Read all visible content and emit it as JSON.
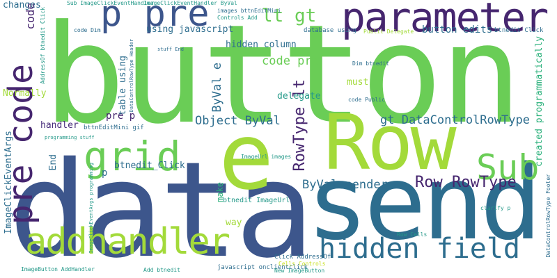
{
  "palette": {
    "green": "#6acd56",
    "lime": "#a3da3a",
    "purple": "#46266f",
    "navy": "#3d568c",
    "blue": "#2d6d8e",
    "teal": "#249989",
    "sea": "#29b07a",
    "dark": "#472d7b",
    "yellow": "#c8e020"
  },
  "words": [
    "button",
    "data",
    "send",
    "Row",
    "e",
    "parameter",
    "p pre",
    "grid",
    "pre code",
    "Sub",
    "addhandler",
    "hidden field",
    "lt gt",
    "Row RowType",
    "RowType lt",
    "Object ByVal",
    "gt DataControlRowType",
    "ByVal sender",
    "ByVal e",
    "code pre",
    "button edits",
    "using javascript",
    "changes",
    "code",
    "hidden column",
    "delegate",
    "must",
    "created programmatically",
    "pre p",
    "handler",
    "table using",
    "btnedit_Click",
    "ImageClickEventArgs",
    "Normally",
    "End",
    "way",
    "make",
    "p",
    "btnedit ImageUrl",
    "bttnEditMini gif",
    "Sub ImageClickEventHandler",
    "ImageClickEventHandler ByVal",
    "images bttnEditMini",
    "code Dim",
    "Controls Add",
    "database using",
    "Public Delegate",
    "btnedit Click",
    "Dim btnedit",
    "code Public",
    "stuff End",
    "AddressOf btnedit Click",
    "DataControlRowType Header",
    "programming stuff",
    "ImageUrl images",
    "clarify p",
    "DataControlRowType Footer",
    "ImageClickEventArgs programming",
    "Row Cells",
    "ImageButton AddHandler",
    "Add btnedit",
    "javascript onclientclick",
    "Click AddressOf",
    "Cells Controls",
    "New ImageButton"
  ]
}
